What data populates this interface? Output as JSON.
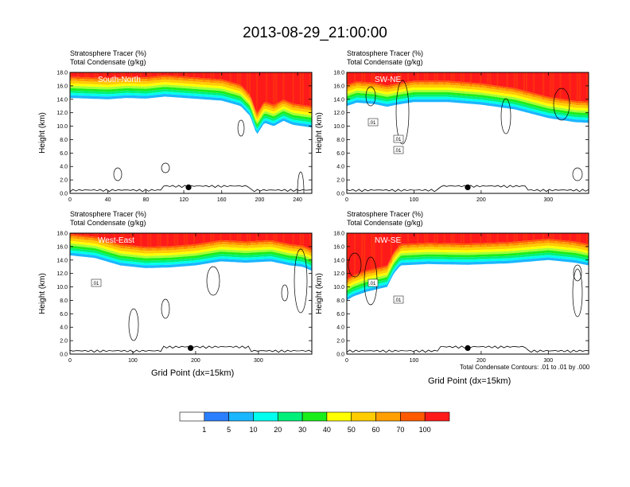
{
  "title": "2013-08-29_21:00:00",
  "panel_header": {
    "line1": "Stratosphere Tracer   (%)",
    "line2": "Total Condensate   (g/kg)"
  },
  "ylabel": "Height (km)",
  "xlabel": "Grid Point (dx=15km)",
  "contour_note": "Total Condensate Contours: .01 to .01 by .000",
  "colorbar": {
    "colors": [
      "#ffffff",
      "#2b7fff",
      "#1ab6ff",
      "#00ffee",
      "#00f07a",
      "#1aee1a",
      "#a6ff33",
      "#ffff00",
      "#ffcc00",
      "#ff9f00",
      "#ff5a00",
      "#ff1a1a"
    ],
    "labels": [
      "1",
      "5",
      "10",
      "20",
      "30",
      "40",
      "50",
      "60",
      "70",
      "100"
    ]
  },
  "chart_data": [
    {
      "type": "heatmap",
      "name": "South-North",
      "xlim": [
        0,
        255
      ],
      "xticks": [
        0,
        40,
        80,
        120,
        160,
        200,
        240
      ],
      "ylim": [
        0,
        18
      ],
      "yticks": [
        "0.0",
        "2.0",
        "4.0",
        "6.0",
        "8.0",
        "10.0",
        "12.0",
        "14.0",
        "16.0",
        "18.0"
      ],
      "tracer_bottom_km": [
        [
          0,
          14.2
        ],
        [
          20,
          14.1
        ],
        [
          40,
          14.0
        ],
        [
          60,
          14.2
        ],
        [
          80,
          14.1
        ],
        [
          100,
          14.4
        ],
        [
          120,
          14.2
        ],
        [
          140,
          14.0
        ],
        [
          160,
          13.8
        ],
        [
          180,
          13.0
        ],
        [
          190,
          11.5
        ],
        [
          197,
          8.7
        ],
        [
          205,
          10.5
        ],
        [
          215,
          10.0
        ],
        [
          225,
          10.8
        ],
        [
          235,
          10.2
        ],
        [
          255,
          9.8
        ]
      ],
      "contour_labels": [],
      "marker_x": 125
    },
    {
      "type": "heatmap",
      "name": "SW-NE",
      "xlim": [
        0,
        360
      ],
      "xticks": [
        0,
        100,
        200,
        300
      ],
      "ylim": [
        0,
        18
      ],
      "yticks": [
        "0.0",
        "2.0",
        "4.0",
        "6.0",
        "8.0",
        "10.0",
        "12.0",
        "14.0",
        "16.0",
        "18.0"
      ],
      "tracer_bottom_km": [
        [
          0,
          13.0
        ],
        [
          15,
          13.5
        ],
        [
          40,
          13.3
        ],
        [
          60,
          12.9
        ],
        [
          75,
          13.2
        ],
        [
          100,
          13.6
        ],
        [
          150,
          13.6
        ],
        [
          200,
          13.2
        ],
        [
          250,
          12.5
        ],
        [
          300,
          11.2
        ],
        [
          340,
          10.6
        ],
        [
          360,
          10.5
        ]
      ],
      "contour_labels": [
        ".01",
        ".01",
        ".01"
      ],
      "marker_x": 180
    },
    {
      "type": "heatmap",
      "name": "West-East",
      "xlim": [
        0,
        385
      ],
      "xticks": [
        0,
        100,
        200,
        300
      ],
      "ylim": [
        0,
        18
      ],
      "yticks": [
        "0.0",
        "2.0",
        "4.0",
        "6.0",
        "8.0",
        "10.0",
        "12.0",
        "14.0",
        "16.0",
        "18.0"
      ],
      "tracer_bottom_km": [
        [
          0,
          14.7
        ],
        [
          40,
          14.3
        ],
        [
          80,
          13.2
        ],
        [
          120,
          12.8
        ],
        [
          160,
          12.9
        ],
        [
          200,
          13.2
        ],
        [
          240,
          13.8
        ],
        [
          280,
          13.6
        ],
        [
          320,
          13.8
        ],
        [
          350,
          13.2
        ],
        [
          370,
          13.0
        ],
        [
          385,
          12.4
        ]
      ],
      "contour_labels": [
        ".01"
      ],
      "marker_x": 192
    },
    {
      "type": "heatmap",
      "name": "NW-SE",
      "xlim": [
        0,
        360
      ],
      "xticks": [
        0,
        100,
        200,
        300
      ],
      "ylim": [
        0,
        18
      ],
      "yticks": [
        "0.0",
        "2.0",
        "4.0",
        "6.0",
        "8.0",
        "10.0",
        "12.0",
        "14.0",
        "16.0",
        "18.0"
      ],
      "tracer_bottom_km": [
        [
          0,
          8.0
        ],
        [
          10,
          8.6
        ],
        [
          30,
          9.3
        ],
        [
          60,
          10.0
        ],
        [
          70,
          12.0
        ],
        [
          80,
          13.2
        ],
        [
          120,
          13.4
        ],
        [
          180,
          13.3
        ],
        [
          240,
          13.5
        ],
        [
          300,
          14.0
        ],
        [
          340,
          13.6
        ],
        [
          360,
          13.2
        ]
      ],
      "contour_labels": [
        ".01",
        ".01"
      ],
      "marker_x": 180
    }
  ]
}
